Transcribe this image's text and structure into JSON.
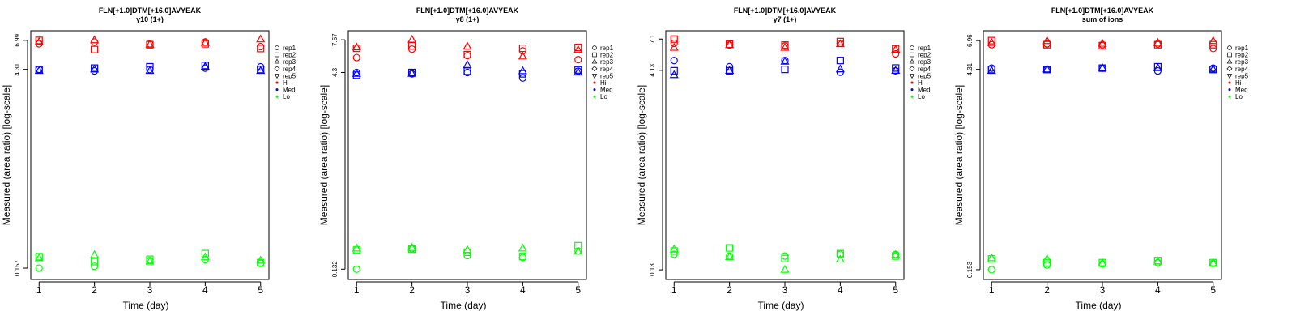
{
  "colors": {
    "Hi": "#ff0000",
    "Med": "#0000ff",
    "Lo": "#00ff00"
  },
  "chart_data": [
    {
      "type": "scatter",
      "title": "FLN[+1.0]DTM[+16.0]AVYEAK",
      "subtitle": "y10 (1+)",
      "xlabel": "Time (day)",
      "ylabel": "Measured (area ratio) [log-scale]",
      "yscale": "log",
      "xticks": [
        1,
        2,
        3,
        4,
        5
      ],
      "ytick_labels": [
        "0.157",
        "4.31",
        "6.99"
      ],
      "ylim": [
        0.13,
        8.2
      ],
      "legend": {
        "reps": [
          "rep1",
          "rep2",
          "rep3",
          "rep4",
          "rep5"
        ],
        "levels": [
          "Hi",
          "Med",
          "Lo"
        ]
      },
      "series": [
        {
          "level": "Hi",
          "rep": "rep1",
          "x": [
            1,
            2,
            3,
            4,
            5
          ],
          "y": [
            6.6,
            6.8,
            6.6,
            6.8,
            6.3
          ]
        },
        {
          "level": "Hi",
          "rep": "rep2",
          "x": [
            1,
            2,
            3,
            4,
            5
          ],
          "y": [
            6.99,
            6.0,
            6.5,
            6.6,
            6.1
          ]
        },
        {
          "level": "Hi",
          "rep": "rep3",
          "x": [
            1,
            2,
            3,
            4,
            5
          ],
          "y": [
            6.8,
            7.0,
            6.5,
            6.7,
            7.1
          ]
        },
        {
          "level": "Med",
          "rep": "rep1",
          "x": [
            1,
            2,
            3,
            4,
            5
          ],
          "y": [
            4.31,
            4.2,
            4.3,
            4.4,
            4.5
          ]
        },
        {
          "level": "Med",
          "rep": "rep2",
          "x": [
            1,
            2,
            3,
            4,
            5
          ],
          "y": [
            4.3,
            4.4,
            4.5,
            4.6,
            4.3
          ]
        },
        {
          "level": "Med",
          "rep": "rep3",
          "x": [
            1,
            2,
            3,
            4,
            5
          ],
          "y": [
            4.2,
            4.3,
            4.2,
            4.5,
            4.2
          ]
        },
        {
          "level": "Lo",
          "rep": "rep1",
          "x": [
            1,
            2,
            3,
            4,
            5
          ],
          "y": [
            0.157,
            0.162,
            0.178,
            0.181,
            0.17
          ]
        },
        {
          "level": "Lo",
          "rep": "rep2",
          "x": [
            1,
            2,
            3,
            4,
            5
          ],
          "y": [
            0.19,
            0.175,
            0.182,
            0.2,
            0.172
          ]
        },
        {
          "level": "Lo",
          "rep": "rep3",
          "x": [
            1,
            2,
            3,
            4,
            5
          ],
          "y": [
            0.185,
            0.195,
            0.175,
            0.188,
            0.178
          ]
        }
      ]
    },
    {
      "type": "scatter",
      "title": "FLN[+1.0]DTM[+16.0]AVYEAK",
      "subtitle": "y8 (1+)",
      "xlabel": "Time (day)",
      "ylabel": "Measured (area ratio) [log-scale]",
      "yscale": "log",
      "xticks": [
        1,
        2,
        3,
        4,
        5
      ],
      "ytick_labels": [
        "0.132",
        "4.3",
        "7.67"
      ],
      "ylim": [
        0.11,
        9.0
      ],
      "legend": {
        "reps": [
          "rep1",
          "rep2",
          "rep3",
          "rep4",
          "rep5"
        ],
        "levels": [
          "Hi",
          "Med",
          "Lo"
        ]
      },
      "series": [
        {
          "level": "Hi",
          "rep": "rep1",
          "x": [
            1,
            2,
            3,
            4,
            5
          ],
          "y": [
            5.6,
            6.5,
            5.8,
            6.3,
            5.4
          ]
        },
        {
          "level": "Hi",
          "rep": "rep2",
          "x": [
            1,
            2,
            3,
            4,
            5
          ],
          "y": [
            6.6,
            6.9,
            5.9,
            6.6,
            6.7
          ]
        },
        {
          "level": "Hi",
          "rep": "rep3",
          "x": [
            1,
            2,
            3,
            4,
            5
          ],
          "y": [
            6.7,
            7.67,
            6.8,
            5.7,
            6.4
          ]
        },
        {
          "level": "Med",
          "rep": "rep1",
          "x": [
            1,
            2,
            3,
            4,
            5
          ],
          "y": [
            4.3,
            4.2,
            4.3,
            3.9,
            4.4
          ]
        },
        {
          "level": "Med",
          "rep": "rep2",
          "x": [
            1,
            2,
            3,
            4,
            5
          ],
          "y": [
            4.1,
            4.3,
            4.4,
            4.2,
            4.5
          ]
        },
        {
          "level": "Med",
          "rep": "rep3",
          "x": [
            1,
            2,
            3,
            4,
            5
          ],
          "y": [
            4.2,
            4.2,
            4.9,
            4.4,
            4.3
          ]
        },
        {
          "level": "Lo",
          "rep": "rep1",
          "x": [
            1,
            2,
            3,
            4,
            5
          ],
          "y": [
            0.132,
            0.19,
            0.168,
            0.162,
            0.182
          ]
        },
        {
          "level": "Lo",
          "rep": "rep2",
          "x": [
            1,
            2,
            3,
            4,
            5
          ],
          "y": [
            0.185,
            0.188,
            0.178,
            0.165,
            0.2
          ]
        },
        {
          "level": "Lo",
          "rep": "rep3",
          "x": [
            1,
            2,
            3,
            4,
            5
          ],
          "y": [
            0.19,
            0.192,
            0.185,
            0.19,
            0.18
          ]
        }
      ]
    },
    {
      "type": "scatter",
      "title": "FLN[+1.0]DTM[+16.0]AVYEAK",
      "subtitle": "y7 (1+)",
      "xlabel": "Time (day)",
      "ylabel": "Measured (area ratio) [log-scale]",
      "yscale": "log",
      "xticks": [
        1,
        2,
        3,
        4,
        5
      ],
      "ytick_labels": [
        "0.13",
        "4.13",
        "7.1"
      ],
      "ylim": [
        0.11,
        8.2
      ],
      "legend": {
        "reps": [
          "rep1",
          "rep2",
          "rep3",
          "rep4",
          "rep5"
        ],
        "levels": [
          "Hi",
          "Med",
          "Lo"
        ]
      },
      "series": [
        {
          "level": "Hi",
          "rep": "rep1",
          "x": [
            1,
            2,
            3,
            4,
            5
          ],
          "y": [
            6.6,
            6.4,
            6.3,
            6.6,
            5.5
          ]
        },
        {
          "level": "Hi",
          "rep": "rep2",
          "x": [
            1,
            2,
            3,
            4,
            5
          ],
          "y": [
            7.1,
            6.5,
            6.4,
            6.8,
            6.0
          ]
        },
        {
          "level": "Hi",
          "rep": "rep3",
          "x": [
            1,
            2,
            3,
            4,
            5
          ],
          "y": [
            6.1,
            6.4,
            6.1,
            6.5,
            5.9
          ]
        },
        {
          "level": "Med",
          "rep": "rep1",
          "x": [
            1,
            2,
            3,
            4,
            5
          ],
          "y": [
            4.9,
            4.4,
            4.9,
            4.0,
            4.1
          ]
        },
        {
          "level": "Med",
          "rep": "rep2",
          "x": [
            1,
            2,
            3,
            4,
            5
          ],
          "y": [
            4.1,
            4.1,
            4.2,
            4.9,
            4.3
          ]
        },
        {
          "level": "Med",
          "rep": "rep3",
          "x": [
            1,
            2,
            3,
            4,
            5
          ],
          "y": [
            3.8,
            4.1,
            4.8,
            4.2,
            4.1
          ]
        },
        {
          "level": "Lo",
          "rep": "rep1",
          "x": [
            1,
            2,
            3,
            4,
            5
          ],
          "y": [
            0.17,
            0.165,
            0.165,
            0.17,
            0.17
          ]
        },
        {
          "level": "Lo",
          "rep": "rep2",
          "x": [
            1,
            2,
            3,
            4,
            5
          ],
          "y": [
            0.18,
            0.19,
            0.158,
            0.172,
            0.165
          ]
        },
        {
          "level": "Lo",
          "rep": "rep3",
          "x": [
            1,
            2,
            3,
            4,
            5
          ],
          "y": [
            0.185,
            0.162,
            0.13,
            0.155,
            0.168
          ]
        }
      ]
    },
    {
      "type": "scatter",
      "title": "FLN[+1.0]DTM[+16.0]AVYEAK",
      "subtitle": "sum of ions",
      "xlabel": "Time (day)",
      "ylabel": "Measured (area ratio) [log-scale]",
      "yscale": "log",
      "xticks": [
        1,
        2,
        3,
        4,
        5
      ],
      "ytick_labels": [
        "0.153",
        "4.31",
        "6.96"
      ],
      "ylim": [
        0.13,
        8.2
      ],
      "legend": {
        "reps": [
          "rep1",
          "rep2",
          "rep3",
          "rep4",
          "rep5"
        ],
        "levels": [
          "Hi",
          "Med",
          "Lo"
        ]
      },
      "series": [
        {
          "level": "Hi",
          "rep": "rep1",
          "x": [
            1,
            2,
            3,
            4,
            5
          ],
          "y": [
            6.5,
            6.6,
            6.5,
            6.6,
            6.1
          ]
        },
        {
          "level": "Hi",
          "rep": "rep2",
          "x": [
            1,
            2,
            3,
            4,
            5
          ],
          "y": [
            6.96,
            6.5,
            6.4,
            6.5,
            6.5
          ]
        },
        {
          "level": "Hi",
          "rep": "rep3",
          "x": [
            1,
            2,
            3,
            4,
            5
          ],
          "y": [
            6.7,
            6.9,
            6.6,
            6.7,
            6.9
          ]
        },
        {
          "level": "Med",
          "rep": "rep1",
          "x": [
            1,
            2,
            3,
            4,
            5
          ],
          "y": [
            4.4,
            4.3,
            4.4,
            4.2,
            4.4
          ]
        },
        {
          "level": "Med",
          "rep": "rep2",
          "x": [
            1,
            2,
            3,
            4,
            5
          ],
          "y": [
            4.3,
            4.3,
            4.4,
            4.5,
            4.3
          ]
        },
        {
          "level": "Med",
          "rep": "rep3",
          "x": [
            1,
            2,
            3,
            4,
            5
          ],
          "y": [
            4.2,
            4.3,
            4.4,
            4.4,
            4.3
          ]
        },
        {
          "level": "Lo",
          "rep": "rep1",
          "x": [
            1,
            2,
            3,
            4,
            5
          ],
          "y": [
            0.153,
            0.165,
            0.168,
            0.172,
            0.17
          ]
        },
        {
          "level": "Lo",
          "rep": "rep2",
          "x": [
            1,
            2,
            3,
            4,
            5
          ],
          "y": [
            0.183,
            0.172,
            0.172,
            0.178,
            0.172
          ]
        },
        {
          "level": "Lo",
          "rep": "rep3",
          "x": [
            1,
            2,
            3,
            4,
            5
          ],
          "y": [
            0.185,
            0.182,
            0.17,
            0.175,
            0.17
          ]
        }
      ]
    }
  ]
}
